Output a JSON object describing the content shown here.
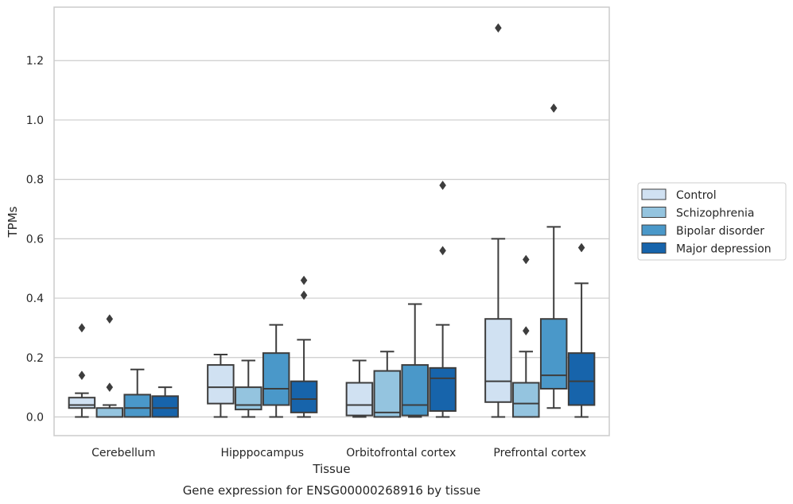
{
  "caption": "Gene expression for ENSG00000268916 by tissue",
  "chart_data": {
    "type": "box",
    "xlabel": "Tissue",
    "ylabel": "TPMs",
    "ylim": [
      -0.063,
      1.38
    ],
    "yticks": [
      "0.0",
      "0.2",
      "0.4",
      "0.6",
      "0.8",
      "1.0",
      "1.2"
    ],
    "grid": "horizontal",
    "legend_position": "right",
    "categories": [
      "Cerebellum",
      "Hipppocampus",
      "Orbitofrontal cortex",
      "Prefrontal cortex"
    ],
    "series": [
      {
        "name": "Control",
        "color": "#d0e1f2",
        "boxes": [
          {
            "whislo": 0.0,
            "q1": 0.03,
            "med": 0.04,
            "q3": 0.065,
            "whishi": 0.08,
            "fliers": [
              0.14,
              0.3
            ]
          },
          {
            "whislo": 0.0,
            "q1": 0.045,
            "med": 0.1,
            "q3": 0.175,
            "whishi": 0.21,
            "fliers": []
          },
          {
            "whislo": 0.0,
            "q1": 0.005,
            "med": 0.04,
            "q3": 0.115,
            "whishi": 0.19,
            "fliers": []
          },
          {
            "whislo": 0.0,
            "q1": 0.05,
            "med": 0.12,
            "q3": 0.33,
            "whishi": 0.6,
            "fliers": [
              1.31
            ]
          }
        ]
      },
      {
        "name": "Schizophrenia",
        "color": "#94c4df",
        "boxes": [
          {
            "whislo": 0.0,
            "q1": 0.0,
            "med": 0.0,
            "q3": 0.03,
            "whishi": 0.04,
            "fliers": [
              0.1,
              0.33
            ]
          },
          {
            "whislo": 0.0,
            "q1": 0.025,
            "med": 0.04,
            "q3": 0.1,
            "whishi": 0.19,
            "fliers": []
          },
          {
            "whislo": 0.0,
            "q1": 0.0,
            "med": 0.015,
            "q3": 0.155,
            "whishi": 0.22,
            "fliers": []
          },
          {
            "whislo": 0.0,
            "q1": 0.0,
            "med": 0.045,
            "q3": 0.115,
            "whishi": 0.22,
            "fliers": [
              0.29,
              0.53
            ]
          }
        ]
      },
      {
        "name": "Bipolar disorder",
        "color": "#4a98c9",
        "boxes": [
          {
            "whislo": 0.0,
            "q1": 0.0,
            "med": 0.03,
            "q3": 0.075,
            "whishi": 0.16,
            "fliers": []
          },
          {
            "whislo": 0.0,
            "q1": 0.04,
            "med": 0.095,
            "q3": 0.215,
            "whishi": 0.31,
            "fliers": []
          },
          {
            "whislo": 0.0,
            "q1": 0.005,
            "med": 0.04,
            "q3": 0.175,
            "whishi": 0.38,
            "fliers": []
          },
          {
            "whislo": 0.03,
            "q1": 0.095,
            "med": 0.14,
            "q3": 0.33,
            "whishi": 0.64,
            "fliers": [
              1.04
            ]
          }
        ]
      },
      {
        "name": "Major depression",
        "color": "#1764ab",
        "boxes": [
          {
            "whislo": 0.0,
            "q1": 0.0,
            "med": 0.03,
            "q3": 0.07,
            "whishi": 0.1,
            "fliers": []
          },
          {
            "whislo": 0.0,
            "q1": 0.015,
            "med": 0.06,
            "q3": 0.12,
            "whishi": 0.26,
            "fliers": [
              0.41,
              0.46
            ]
          },
          {
            "whislo": 0.0,
            "q1": 0.02,
            "med": 0.13,
            "q3": 0.165,
            "whishi": 0.31,
            "fliers": [
              0.56,
              0.78
            ]
          },
          {
            "whislo": 0.0,
            "q1": 0.04,
            "med": 0.12,
            "q3": 0.215,
            "whishi": 0.45,
            "fliers": [
              0.57
            ]
          }
        ]
      }
    ]
  }
}
